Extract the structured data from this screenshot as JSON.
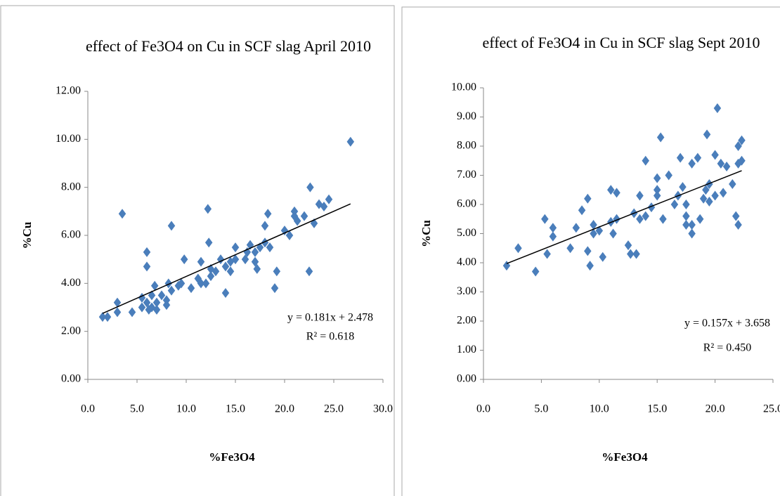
{
  "chart_data": [
    {
      "type": "scatter",
      "title": "effect of  Fe3O4 on Cu in SCF slag April 2010",
      "x_label": "%Fe3O4",
      "y_label": "%Cu",
      "color": "#4a7ebb",
      "x": [
        1.5,
        2,
        3,
        3,
        3.5,
        4.5,
        5.5,
        5.5,
        6,
        6,
        6,
        6.2,
        6.5,
        6.5,
        6.8,
        7,
        7,
        7.5,
        8,
        8,
        8.2,
        8.5,
        8.5,
        9.2,
        9.5,
        9.8,
        10.5,
        11.2,
        11.5,
        11.5,
        12,
        12.2,
        12.3,
        12.5,
        12.5,
        13,
        13.5,
        14,
        14,
        14.5,
        14.5,
        15,
        15,
        16,
        16.2,
        16.5,
        17,
        17,
        17.2,
        17.5,
        18,
        18,
        18.3,
        18.5,
        19,
        19.2,
        20,
        20.5,
        21,
        21,
        21.3,
        22,
        22.5,
        22.6,
        23,
        23.5,
        24,
        24.5,
        26.7
      ],
      "values": [
        2.6,
        2.6,
        2.8,
        3.2,
        6.9,
        2.8,
        3.0,
        3.4,
        5.3,
        4.7,
        3.2,
        2.9,
        3.5,
        3.0,
        3.9,
        3.2,
        2.9,
        3.5,
        3.1,
        3.3,
        4.0,
        3.7,
        6.4,
        3.9,
        4.0,
        5.0,
        3.8,
        4.2,
        4.0,
        4.9,
        4.0,
        7.1,
        5.7,
        4.3,
        4.6,
        4.5,
        5.0,
        3.6,
        4.7,
        4.5,
        4.9,
        5.0,
        5.5,
        5.0,
        5.3,
        5.6,
        4.9,
        5.3,
        4.6,
        5.5,
        5.7,
        6.4,
        6.9,
        5.5,
        3.8,
        4.5,
        6.2,
        6.0,
        6.8,
        7.0,
        6.6,
        6.8,
        4.5,
        8.0,
        6.5,
        7.3,
        7.2,
        7.5,
        9.9
      ],
      "trendline": {
        "slope": 0.181,
        "intercept": 2.478,
        "xrange": [
          1.5,
          26.7
        ],
        "equation": "y = 0.181x + 2.478",
        "r_squared": "R² = 0.618"
      },
      "xlim": [
        0,
        30
      ],
      "ylim": [
        0,
        12
      ],
      "xticks": [
        {
          "value": 0,
          "label": "0.0"
        },
        {
          "value": 5,
          "label": "5.0"
        },
        {
          "value": 10,
          "label": "10.0"
        },
        {
          "value": 15,
          "label": "15.0"
        },
        {
          "value": 20,
          "label": "20.0"
        },
        {
          "value": 25,
          "label": "25.0"
        },
        {
          "value": 30,
          "label": "30.0"
        }
      ],
      "yticks": [
        {
          "value": 0,
          "label": "0.00"
        },
        {
          "value": 2,
          "label": "2.00"
        },
        {
          "value": 4,
          "label": "4.00"
        },
        {
          "value": 6,
          "label": "6.00"
        },
        {
          "value": 8,
          "label": "8.00"
        },
        {
          "value": 10,
          "label": "10.00"
        },
        {
          "value": 12,
          "label": "12.00"
        }
      ]
    },
    {
      "type": "scatter",
      "title": "effect of Fe3O4 in Cu in SCF slag Sept 2010",
      "x_label": "%Fe3O4",
      "y_label": "%Cu",
      "color": "#4a7ebb",
      "x": [
        2,
        3,
        4.5,
        5.3,
        5.5,
        6,
        6,
        7.5,
        8,
        8.5,
        9,
        9,
        9.2,
        9.5,
        9.5,
        10,
        10.3,
        11,
        11,
        11.2,
        11.5,
        11.5,
        12.5,
        12.7,
        13,
        13.2,
        13.5,
        13.5,
        14,
        14,
        14.5,
        15,
        15,
        15,
        15.3,
        15.5,
        16,
        16.5,
        16.8,
        17,
        17.2,
        17.5,
        17.5,
        17.5,
        18,
        18,
        18,
        18.5,
        18.7,
        19,
        19.2,
        19.3,
        19.5,
        19.5,
        20,
        20,
        20.2,
        20.5,
        20.7,
        21,
        21.5,
        21.8,
        22,
        22,
        22,
        22.3,
        22.3
      ],
      "values": [
        3.9,
        4.5,
        3.7,
        5.5,
        4.3,
        5.2,
        4.9,
        4.5,
        5.2,
        5.8,
        6.2,
        4.4,
        3.9,
        5.0,
        5.3,
        5.1,
        4.2,
        5.4,
        6.5,
        5.0,
        6.4,
        5.5,
        4.6,
        4.3,
        5.7,
        4.3,
        5.5,
        6.3,
        5.6,
        7.5,
        5.9,
        6.3,
        6.5,
        6.9,
        8.3,
        5.5,
        7.0,
        6.0,
        6.3,
        7.6,
        6.6,
        5.3,
        5.6,
        6.0,
        5.0,
        5.3,
        7.4,
        7.6,
        5.5,
        6.2,
        6.5,
        8.4,
        6.7,
        6.1,
        6.3,
        7.7,
        9.3,
        7.4,
        6.4,
        7.3,
        6.7,
        5.6,
        5.3,
        7.4,
        8.0,
        7.5,
        8.2
      ],
      "trendline": {
        "slope": 0.157,
        "intercept": 3.658,
        "xrange": [
          2,
          22.3
        ],
        "equation": "y = 0.157x + 3.658",
        "r_squared": "R² = 0.450"
      },
      "xlim": [
        0,
        25
      ],
      "ylim": [
        0,
        10
      ],
      "xticks": [
        {
          "value": 0,
          "label": "0.0"
        },
        {
          "value": 5,
          "label": "5.0"
        },
        {
          "value": 10,
          "label": "10.0"
        },
        {
          "value": 15,
          "label": "15.0"
        },
        {
          "value": 20,
          "label": "20.0"
        },
        {
          "value": 25,
          "label": "25.0"
        }
      ],
      "yticks": [
        {
          "value": 0,
          "label": "0.00"
        },
        {
          "value": 1,
          "label": "1.00"
        },
        {
          "value": 2,
          "label": "2.00"
        },
        {
          "value": 3,
          "label": "3.00"
        },
        {
          "value": 4,
          "label": "4.00"
        },
        {
          "value": 5,
          "label": "5.00"
        },
        {
          "value": 6,
          "label": "6.00"
        },
        {
          "value": 7,
          "label": "7.00"
        },
        {
          "value": 8,
          "label": "8.00"
        },
        {
          "value": 9,
          "label": "9.00"
        },
        {
          "value": 10,
          "label": "10.00"
        }
      ]
    }
  ]
}
